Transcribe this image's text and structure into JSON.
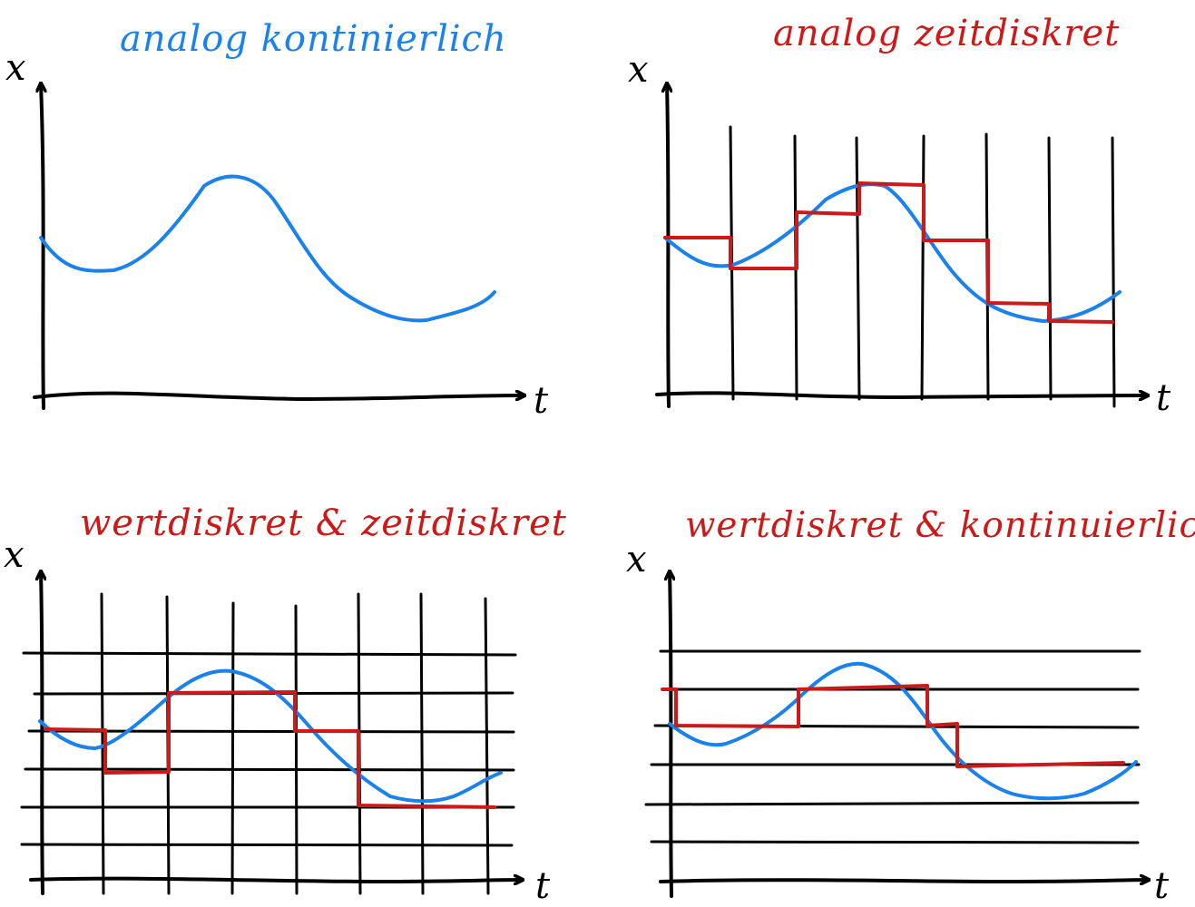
{
  "colors": {
    "ink": "#000000",
    "continuous_signal": "#1a82ea",
    "discrete_signal": "#cc1a1a"
  },
  "panels": [
    {
      "title": "analog kontinierlich",
      "title_color": "#1a82ea",
      "y_axis_label": "x",
      "x_axis_label": "t"
    },
    {
      "title": "analog zeitdiskret",
      "title_color": "#cc1a1a",
      "y_axis_label": "x",
      "x_axis_label": "t"
    },
    {
      "title": "wertdiskret & zeitdiskret",
      "title_color": "#cc1a1a",
      "y_axis_label": "x",
      "x_axis_label": "t"
    },
    {
      "title": "wertdiskret & kontinuierlich",
      "title_color": "#cc1a1a",
      "y_axis_label": "x",
      "x_axis_label": "t"
    }
  ]
}
